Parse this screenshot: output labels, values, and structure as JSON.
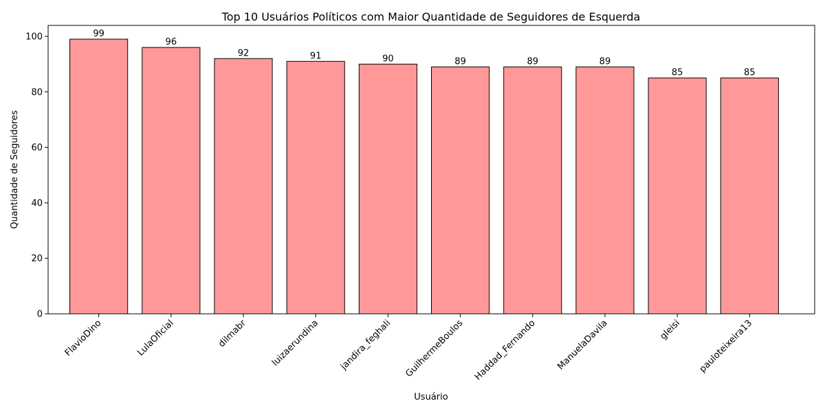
{
  "chart_data": {
    "type": "bar",
    "title": "Top 10 Usuários Políticos com Maior Quantidade de Seguidores de Esquerda",
    "xlabel": "Usuário",
    "ylabel": "Quantidade de Seguidores",
    "categories": [
      "FlavioDino",
      "LulaOficial",
      "dilmabr",
      "luizaerundina",
      "jandira_feghali",
      "GuilhermeBoulos",
      "Haddad_Fernando",
      "ManuelaDavila",
      "gleisi",
      "pauloteixeira13"
    ],
    "values": [
      99,
      96,
      92,
      91,
      90,
      89,
      89,
      89,
      85,
      85
    ],
    "ylim": [
      0,
      103.95
    ],
    "yticks": [
      0,
      20,
      40,
      60,
      80,
      100
    ],
    "bar_color": "#ff9999",
    "edge_color": "#000000",
    "grid": false,
    "legend": "none"
  }
}
